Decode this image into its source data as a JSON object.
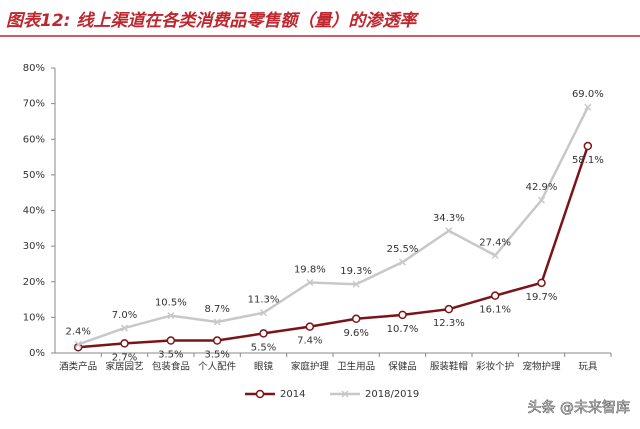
{
  "chart_data": {
    "type": "line",
    "title": "图表12: 线上渠道在各类消费品零售额（量）的渗透率",
    "categories": [
      "酒类产品",
      "家居园艺",
      "包装食品",
      "个人配件",
      "眼镜",
      "家庭护理",
      "卫生用品",
      "保健品",
      "服装鞋帽",
      "彩妆个护",
      "宠物护理",
      "玩具"
    ],
    "series": [
      {
        "name": "2014",
        "color": "#7b1418",
        "values": [
          1.6,
          2.7,
          3.5,
          3.5,
          5.5,
          7.4,
          9.6,
          10.7,
          12.3,
          16.1,
          19.7,
          58.1
        ],
        "value_labels": [
          null,
          "2.7%",
          "3.5%",
          "3.5%",
          "5.5%",
          "7.4%",
          "9.6%",
          "10.7%",
          "12.3%",
          "16.1%",
          "19.7%",
          "58.1%"
        ]
      },
      {
        "name": "2018/2019",
        "color": "#c8c8c8",
        "values": [
          2.4,
          7.0,
          10.5,
          8.7,
          11.3,
          19.8,
          19.3,
          25.5,
          34.3,
          27.4,
          42.9,
          69.0
        ],
        "value_labels": [
          "2.4%",
          "7.0%",
          "10.5%",
          "8.7%",
          "11.3%",
          "19.8%",
          "19.3%",
          "25.5%",
          "34.3%",
          "27.4%",
          "42.9%",
          "69.0%"
        ]
      }
    ],
    "ylim": [
      0,
      80
    ],
    "yticks": [
      {
        "value": 0,
        "label": "0%"
      },
      {
        "value": 10,
        "label": "10%"
      },
      {
        "value": 20,
        "label": "20%"
      },
      {
        "value": 30,
        "label": "30%"
      },
      {
        "value": 40,
        "label": "40%"
      },
      {
        "value": 50,
        "label": "50%"
      },
      {
        "value": 60,
        "label": "60%"
      },
      {
        "value": 70,
        "label": "70%"
      },
      {
        "value": 80,
        "label": "80%"
      }
    ],
    "legend": "bottom",
    "watermark": "头条 @未来智库"
  }
}
